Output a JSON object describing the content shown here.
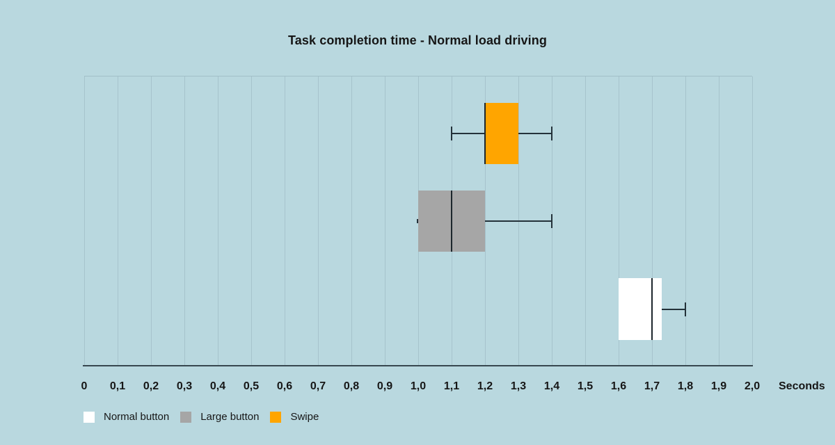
{
  "chart_data": {
    "type": "boxplot",
    "orientation": "horizontal",
    "title": "Task completion time - Normal load driving",
    "xlabel": "Seconds",
    "xlim": [
      0,
      2.0
    ],
    "tick_step": 0.1,
    "tick_labels": [
      "0",
      "0,1",
      "0,2",
      "0,3",
      "0,4",
      "0,5",
      "0,6",
      "0,7",
      "0,8",
      "0,9",
      "1,0",
      "1,1",
      "1,2",
      "1,3",
      "1,4",
      "1,5",
      "1,6",
      "1,7",
      "1,8",
      "1,9",
      "2,0"
    ],
    "grid": "vertical-on",
    "legend_position": "bottom-left",
    "series": [
      {
        "name": "Swipe",
        "color": "#FFA500",
        "min": 1.1,
        "q1": 1.2,
        "median": 1.2,
        "q3": 1.3,
        "max": 1.4
      },
      {
        "name": "Large button",
        "color": "#A6A6A6",
        "min": 1.0,
        "q1": 1.0,
        "median": 1.1,
        "q3": 1.2,
        "max": 1.4
      },
      {
        "name": "Normal button",
        "color": "#FFFFFF",
        "min": 1.6,
        "q1": 1.6,
        "median": 1.7,
        "q3": 1.73,
        "max": 1.8
      }
    ],
    "legend": [
      {
        "label": "Normal button",
        "color": "#FFFFFF"
      },
      {
        "label": "Large button",
        "color": "#A6A6A6"
      },
      {
        "label": "Swipe",
        "color": "#FFA500"
      }
    ]
  },
  "colors": {
    "background": "#b9d8df",
    "gridline": "#a6c3cc",
    "axis_line": "#37474f",
    "whisker": "#233139",
    "median": "#1c262c",
    "text": "#161616"
  }
}
